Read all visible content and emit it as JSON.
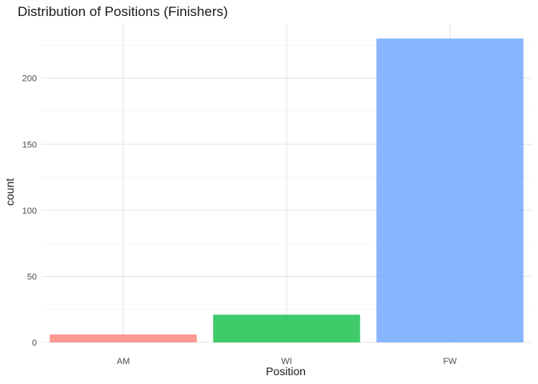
{
  "chart_data": {
    "type": "bar",
    "title": "Distribution of Positions (Finishers)",
    "xlabel": "Position",
    "ylabel": "count",
    "categories": [
      "AM",
      "WI",
      "FW"
    ],
    "values": [
      6,
      21,
      230
    ],
    "colors": [
      "#F8766D",
      "#00BA38",
      "#619CFF"
    ],
    "bar_opacity": 0.75,
    "ylim": [
      0,
      241
    ],
    "yticks": [
      0,
      50,
      100,
      150,
      200
    ],
    "y_minor_ticks": [
      25,
      75,
      125,
      175,
      225
    ],
    "grid": true,
    "legend": "none"
  }
}
